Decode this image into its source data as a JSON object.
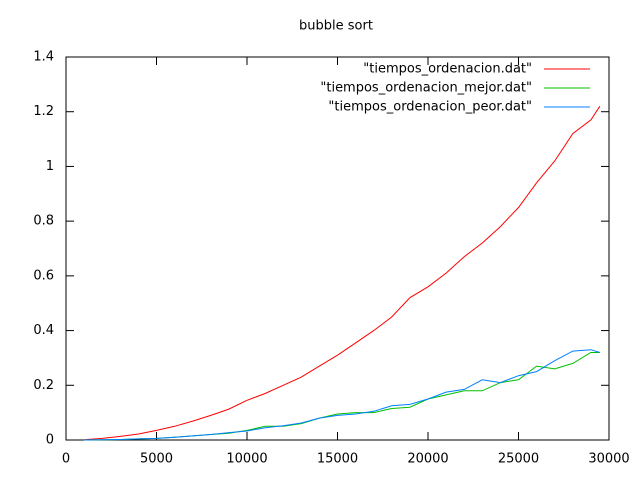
{
  "chart_data": {
    "type": "line",
    "title": "bubble sort",
    "x": [
      1000,
      2000,
      3000,
      4000,
      5000,
      6000,
      7000,
      8000,
      9000,
      10000,
      11000,
      12000,
      13000,
      14000,
      15000,
      16000,
      17000,
      18000,
      19000,
      20000,
      21000,
      22000,
      23000,
      24000,
      25000,
      26000,
      27000,
      28000,
      29000,
      29500
    ],
    "series": [
      {
        "name": "\"tiempos_ordenacion.dat\"",
        "color": "#ff0000",
        "values": [
          0.001,
          0.006,
          0.013,
          0.022,
          0.035,
          0.05,
          0.069,
          0.09,
          0.113,
          0.145,
          0.17,
          0.2,
          0.23,
          0.27,
          0.31,
          0.355,
          0.4,
          0.45,
          0.52,
          0.56,
          0.61,
          0.67,
          0.72,
          0.78,
          0.85,
          0.94,
          1.02,
          1.12,
          1.17,
          1.22
        ]
      },
      {
        "name": "\"tiempos_ordenacion_mejor.dat\"",
        "color": "#00c000",
        "values": [
          0,
          0.001,
          0.002,
          0.004,
          0.006,
          0.01,
          0.015,
          0.02,
          0.025,
          0.035,
          0.05,
          0.05,
          0.06,
          0.08,
          0.095,
          0.1,
          0.1,
          0.115,
          0.12,
          0.15,
          0.165,
          0.18,
          0.18,
          0.21,
          0.22,
          0.27,
          0.26,
          0.28,
          0.32,
          0.32
        ]
      },
      {
        "name": "\"tiempos_ordenacion_peor.dat\"",
        "color": "#0080ff",
        "values": [
          0,
          0.001,
          0.002,
          0.004,
          0.006,
          0.01,
          0.015,
          0.02,
          0.027,
          0.033,
          0.045,
          0.052,
          0.062,
          0.08,
          0.09,
          0.095,
          0.105,
          0.125,
          0.13,
          0.15,
          0.175,
          0.185,
          0.22,
          0.21,
          0.235,
          0.25,
          0.29,
          0.325,
          0.33,
          0.32
        ]
      }
    ],
    "xlim": [
      0,
      30000
    ],
    "xticks": [
      0,
      5000,
      10000,
      15000,
      20000,
      25000,
      30000
    ],
    "ylim": [
      0,
      1.4
    ],
    "yticks": [
      0,
      0.2,
      0.4,
      0.6,
      0.8,
      1,
      1.2,
      1.4
    ],
    "legend": "top-right"
  }
}
